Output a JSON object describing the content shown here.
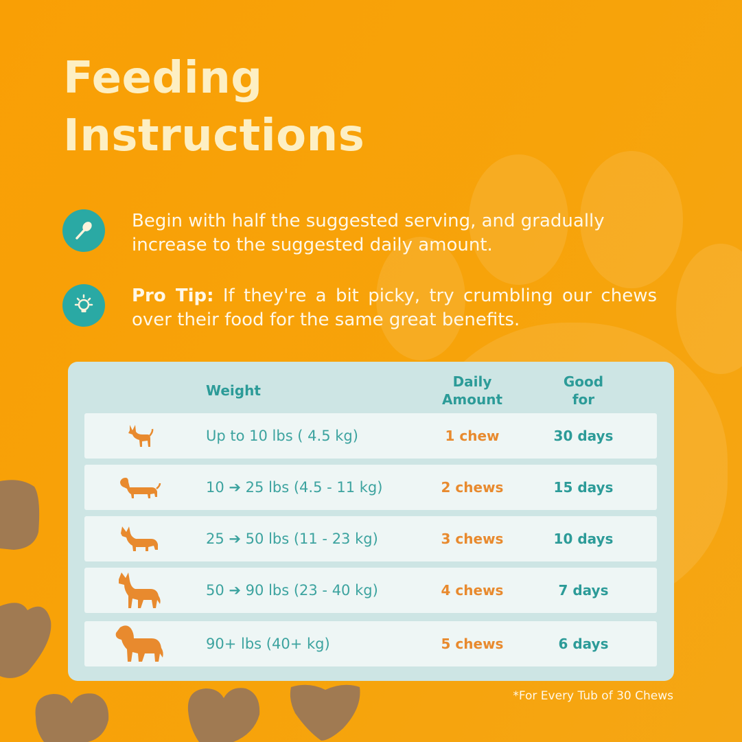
{
  "title": {
    "line1": "Feeding",
    "line2": "Instructions"
  },
  "tips": [
    {
      "icon": "spoon-icon",
      "bold": "",
      "text": "Begin with half the suggested serving, and gradually increase to the suggested daily amount."
    },
    {
      "icon": "lightbulb-icon",
      "bold": "Pro Tip:",
      "text": " If they're a bit picky, try crumbling our chews over their food for the same great benefits."
    }
  ],
  "table": {
    "headers": {
      "weight": "Weight",
      "amount_1": "Daily",
      "amount_2": "Amount",
      "good_1": "Good",
      "good_2": "for"
    },
    "rows": [
      {
        "dog": "chihuahua-icon",
        "weight": "Up to 10 lbs ( 4.5 kg)",
        "amount": "1 chew",
        "good": "30 days"
      },
      {
        "dog": "dachshund-icon",
        "weight": "10  ➔ 25 lbs (4.5 - 11 kg)",
        "amount": "2 chews",
        "good": "15 days"
      },
      {
        "dog": "corgi-icon",
        "weight": "25  ➔ 50 lbs (11 - 23 kg)",
        "amount": "3 chews",
        "good": "10 days"
      },
      {
        "dog": "shepherd-icon",
        "weight": "50  ➔ 90 lbs (23 - 40 kg)",
        "amount": "4 chews",
        "good": "7 days"
      },
      {
        "dog": "bernard-icon",
        "weight": "90+ lbs (40+ kg)",
        "amount": "5 chews",
        "good": "6 days"
      }
    ]
  },
  "footnote": "*For Every Tub of 30 Chews",
  "colors": {
    "background": "#f9a005",
    "teal": "#2aa9a4",
    "accent_orange": "#e88a2e",
    "card": "#cde5e4"
  }
}
